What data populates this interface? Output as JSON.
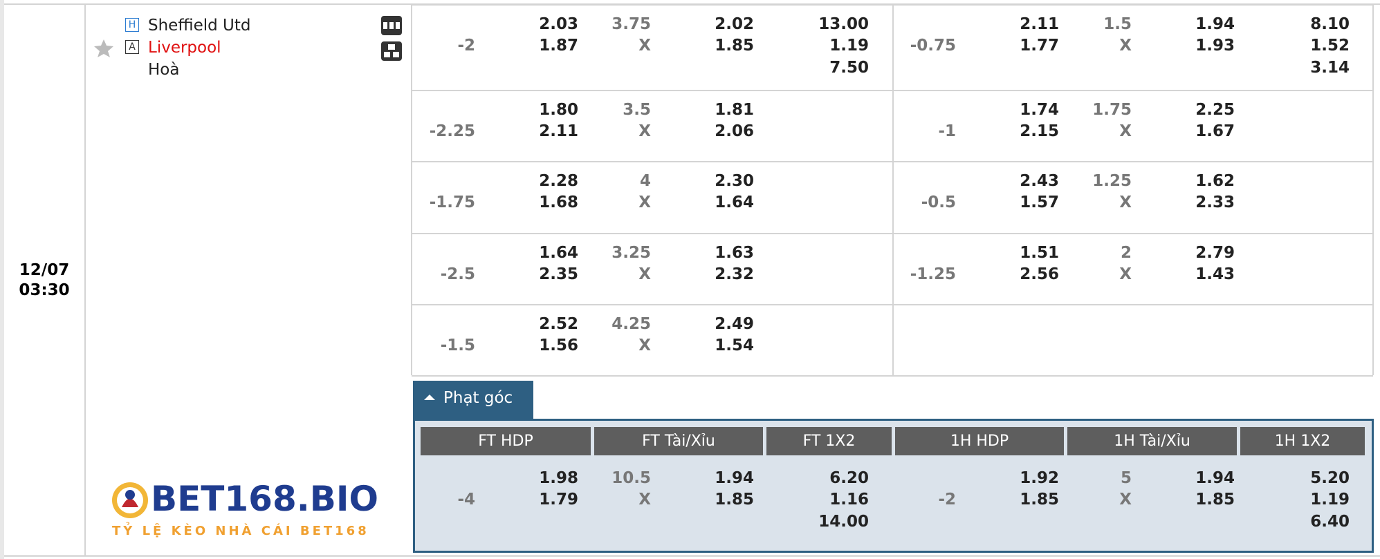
{
  "match": {
    "date": "12/07",
    "time": "03:30",
    "home_tag": "H",
    "home": "Sheffield Utd",
    "away_tag": "A",
    "away": "Liverpool",
    "draw": "Hoà"
  },
  "labels": {
    "under": "X"
  },
  "odds_rows": [
    {
      "ft_hdp": {
        "line": "-2",
        "home": "2.03",
        "away": "1.87"
      },
      "ft_ou": {
        "line": "3.75",
        "over": "2.02",
        "under": "1.85"
      },
      "ft_1x2": {
        "home": "13.00",
        "away": "1.19",
        "draw": "7.50"
      },
      "h1_hdp": {
        "line": "-0.75",
        "home": "2.11",
        "away": "1.77"
      },
      "h1_ou": {
        "line": "1.5",
        "over": "1.94",
        "under": "1.93"
      },
      "h1_1x2": {
        "home": "8.10",
        "away": "1.52",
        "draw": "3.14"
      }
    },
    {
      "ft_hdp": {
        "line": "-2.25",
        "home": "1.80",
        "away": "2.11"
      },
      "ft_ou": {
        "line": "3.5",
        "over": "1.81",
        "under": "2.06"
      },
      "h1_hdp": {
        "line": "-1",
        "home": "1.74",
        "away": "2.15"
      },
      "h1_ou": {
        "line": "1.75",
        "over": "2.25",
        "under": "1.67"
      }
    },
    {
      "ft_hdp": {
        "line": "-1.75",
        "home": "2.28",
        "away": "1.68"
      },
      "ft_ou": {
        "line": "4",
        "over": "2.30",
        "under": "1.64"
      },
      "h1_hdp": {
        "line": "-0.5",
        "home": "2.43",
        "away": "1.57"
      },
      "h1_ou": {
        "line": "1.25",
        "over": "1.62",
        "under": "2.33"
      }
    },
    {
      "ft_hdp": {
        "line": "-2.5",
        "home": "1.64",
        "away": "2.35"
      },
      "ft_ou": {
        "line": "3.25",
        "over": "1.63",
        "under": "2.32"
      },
      "h1_hdp": {
        "line": "-1.25",
        "home": "1.51",
        "away": "2.56"
      },
      "h1_ou": {
        "line": "2",
        "over": "2.79",
        "under": "1.43"
      }
    },
    {
      "ft_hdp": {
        "line": "-1.5",
        "home": "2.52",
        "away": "1.56"
      },
      "ft_ou": {
        "line": "4.25",
        "over": "2.49",
        "under": "1.54"
      }
    }
  ],
  "corners": {
    "tab": "Phạt góc",
    "headers": [
      "FT HDP",
      "FT Tài/Xỉu",
      "FT 1X2",
      "1H HDP",
      "1H Tài/Xỉu",
      "1H 1X2"
    ],
    "row": {
      "ft_hdp": {
        "line": "-4",
        "home": "1.98",
        "away": "1.79"
      },
      "ft_ou": {
        "line": "10.5",
        "over": "1.94",
        "under": "1.85"
      },
      "ft_1x2": {
        "home": "6.20",
        "away": "1.16",
        "draw": "14.00"
      },
      "h1_hdp": {
        "line": "-2",
        "home": "1.92",
        "away": "1.85"
      },
      "h1_ou": {
        "line": "5",
        "over": "1.94",
        "under": "1.85"
      },
      "h1_1x2": {
        "home": "5.20",
        "away": "1.19",
        "draw": "6.40"
      }
    }
  },
  "logo": {
    "name": "BET168.BIO",
    "tagline": "TỶ LỆ KÈO NHÀ CÁI BET168"
  }
}
